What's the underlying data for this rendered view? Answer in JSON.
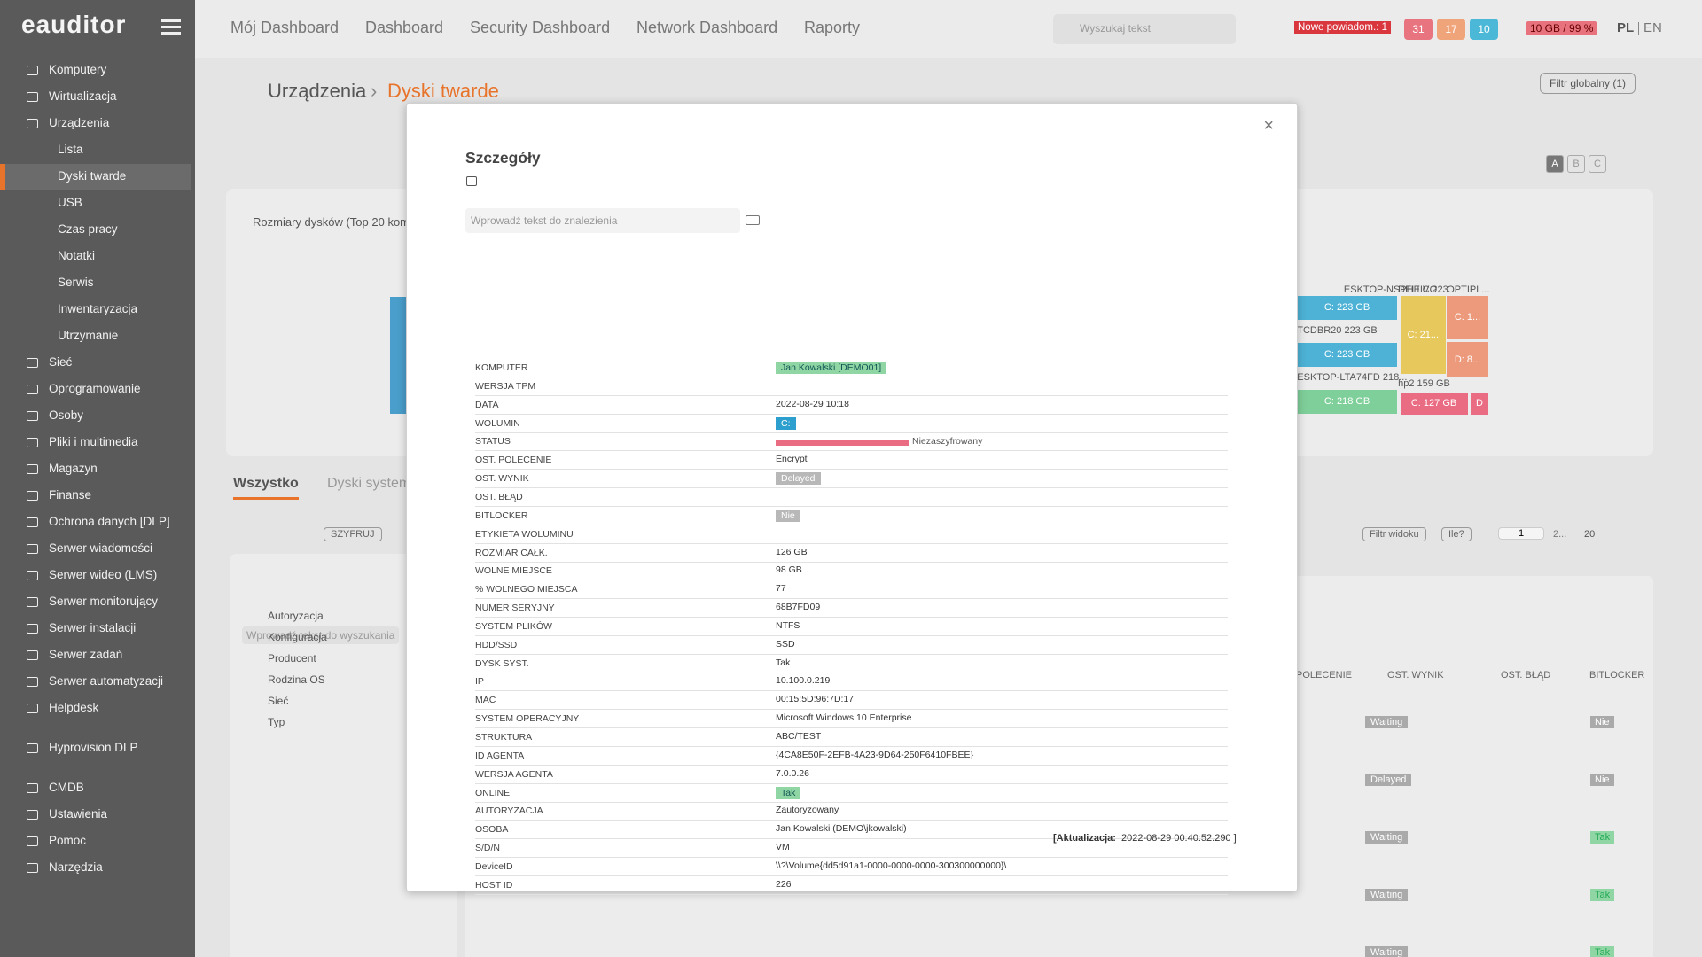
{
  "sidebar": {
    "logo": "eauditor",
    "items": [
      "Komputery",
      "Wirtualizacja",
      "Urządzenia",
      "Lista",
      "Dyski twarde",
      "USB",
      "Czas pracy",
      "Notatki",
      "Serwis",
      "Inwentaryzacja",
      "Utrzymanie",
      "Sieć",
      "Oprogramowanie",
      "Osoby",
      "Pliki i multimedia",
      "Magazyn",
      "Finanse",
      "Ochrona danych [DLP]",
      "Serwer wiadomości",
      "Serwer wideo (LMS)",
      "Serwer monitorujący",
      "Serwer instalacji",
      "Serwer zadań",
      "Serwer automatyzacji",
      "Helpdesk",
      "Hyprovision DLP",
      "CMDB",
      "Ustawienia",
      "Pomoc",
      "Narzędzia"
    ]
  },
  "topbar": {
    "nav": [
      "Mój Dashboard",
      "Dashboard",
      "Security Dashboard",
      "Network Dashboard",
      "Raporty"
    ],
    "search": "Wyszukaj tekst",
    "notification": "Nowe powiadom.: 1",
    "badges": [
      "31",
      "17",
      "10"
    ],
    "storage": "10 GB / 99 %",
    "languages": [
      "PL",
      "EN"
    ]
  },
  "page": {
    "breadcrumb": [
      "Urządzenia",
      "Dyski twarde"
    ],
    "global_filter": "Filtr globalny (1)",
    "views": [
      "A",
      "B",
      "C"
    ],
    "chart_title": "Rozmiary dysków (Top 20 kom",
    "treemap": [
      "ESKTOP-NSPHEIV 223...",
      "DELLCO...",
      "OPTIPL...",
      "C: 223 GB",
      "C: 1...",
      "TCDBR20 223 GB",
      "C: 21...",
      "C: 223 GB",
      "D: 8...",
      "ESKTOP-LTA74FD 218...",
      "hp2 159 GB",
      "C: 218 GB",
      "C: 127 GB",
      "D"
    ],
    "tabs": [
      "Wszystko",
      "Dyski system"
    ],
    "toolbar": [
      "SZYFRUJ",
      "Filtr widoku",
      "Ile?"
    ],
    "pager": {
      "page": "1",
      "next": "2...",
      "size": "20"
    },
    "search": "Wprowadź tekst do wyszukania",
    "tree": [
      "Autoryzacja",
      "Konfiguracja",
      "Producent",
      "Rodzina OS",
      "Sieć",
      "Typ"
    ],
    "columns": [
      "POLECENIE",
      "OST. WYNIK",
      "OST. BŁĄD",
      "BITLOCKER"
    ],
    "results": [
      "Waiting",
      "Delayed",
      "Waiting",
      "Waiting",
      "Waiting"
    ],
    "bitlocker": [
      "Nie",
      "Nie",
      "Tak",
      "Tak",
      "Tak"
    ]
  },
  "modal": {
    "title": "Szczegóły",
    "search": "Wprowadź tekst do znalezienia",
    "rows": [
      {
        "label": "KOMPUTER",
        "value": "Jan Kowalski [DEMO01]"
      },
      {
        "label": "WERSJA TPM"
      },
      {
        "label": "DATA",
        "value": "2022-08-29 10:18"
      },
      {
        "label": "WOLUMIN",
        "value": "C:"
      },
      {
        "label": "STATUS",
        "value": "Niezaszyfrowany"
      },
      {
        "label": "OST. POLECENIE",
        "value": "Encrypt"
      },
      {
        "label": "OST. WYNIK",
        "value": "Delayed"
      },
      {
        "label": "OST. BŁĄD"
      },
      {
        "label": "BITLOCKER",
        "value": "Nie"
      },
      {
        "label": "ETYKIETA WOLUMINU"
      },
      {
        "label": "ROZMIAR CAŁK.",
        "value": "126 GB"
      },
      {
        "label": "WOLNE MIEJSCE",
        "value": "98 GB"
      },
      {
        "label": "% WOLNEGO MIEJSCA",
        "value": "77"
      },
      {
        "label": "NUMER SERYJNY",
        "value": "68B7FD09"
      },
      {
        "label": "SYSTEM PLIKÓW",
        "value": "NTFS"
      },
      {
        "label": "HDD/SSD",
        "value": "SSD"
      },
      {
        "label": "DYSK SYST.",
        "value": "Tak"
      },
      {
        "label": "IP",
        "value": "10.100.0.219"
      },
      {
        "label": "MAC",
        "value": "00:15:5D:96:7D:17"
      },
      {
        "label": "SYSTEM OPERACYJNY",
        "value": "Microsoft Windows 10 Enterprise"
      },
      {
        "label": "STRUKTURA",
        "value": "ABC/TEST"
      },
      {
        "label": "ID AGENTA",
        "value": "{4CA8E50F-2EFB-4A23-9D64-250F6410FBEE}"
      },
      {
        "label": "WERSJA AGENTA",
        "value": "7.0.0.26"
      },
      {
        "label": "ONLINE",
        "value": "Tak"
      },
      {
        "label": "AUTORYZACJA",
        "value": "Zautoryzowany"
      },
      {
        "label": "OSOBA",
        "value": "Jan Kowalski (DEMO\\jkowalski)"
      },
      {
        "label": "S/D/N",
        "value": "VM"
      },
      {
        "label": "DeviceID",
        "value": "\\\\?\\Volume{dd5d91a1-0000-0000-0000-300300000000}\\"
      },
      {
        "label": "HOST ID",
        "value": "226"
      }
    ],
    "footer_label": "[Aktualizacja:",
    "footer_value": "2022-08-29 00:40:52.290 ]"
  }
}
